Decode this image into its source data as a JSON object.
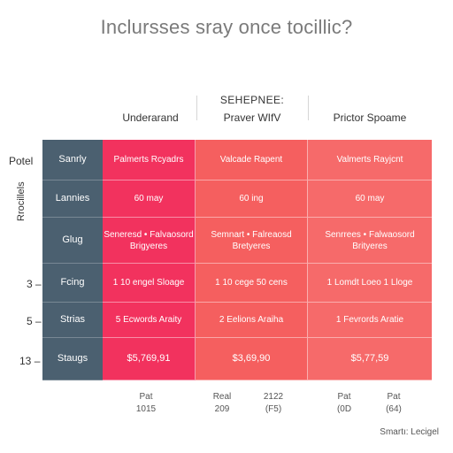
{
  "title": "Inclursses sray once tocillic?",
  "header": {
    "top_label": "SEHEPNEE:",
    "columns": [
      "Underarand",
      "Praver WIfV",
      "Prictor Spoame"
    ]
  },
  "side_labels": {
    "first": "Potel",
    "vertical": "Rrocillels",
    "numbers": [
      "3",
      "5",
      "13"
    ]
  },
  "rows": [
    {
      "category": "Sanrly",
      "values": [
        "Palmerts Rcyadrs",
        "Valcade Rapent",
        "Valmerts Rayjcnt"
      ]
    },
    {
      "category": "Lannies",
      "values": [
        "60 may",
        "60 ing",
        "60 may"
      ]
    },
    {
      "category": "Glug",
      "values": [
        "Seneresd • Falvaosord Brigyeres",
        "Semnart • Falreaosd Bretyeres",
        "Senrrees • Falwaosord Brityeres"
      ]
    },
    {
      "category": "Fcing",
      "values": [
        "1 10 engel Sloage",
        "1 10 cege 50 cens",
        "1 Lomdt Loeo 1 Lloge"
      ]
    },
    {
      "category": "Strias",
      "values": [
        "5 Ecwords Araity",
        "2 Eelions Araiha",
        "1 Fevrords Aratie"
      ]
    },
    {
      "category": "Staugs",
      "values": [
        "$5,769,91",
        "$3,69,90",
        "$5,77,59"
      ]
    }
  ],
  "footer": {
    "col1": [
      "Pat",
      "1015"
    ],
    "col2a": [
      "Real",
      "209"
    ],
    "col2b": [
      "2122",
      "(F5)"
    ],
    "col3a": [
      "Pat",
      "(0D"
    ],
    "col3b": [
      "Pat",
      "(64)"
    ]
  },
  "corner_note": "Smartı: Lecigel"
}
